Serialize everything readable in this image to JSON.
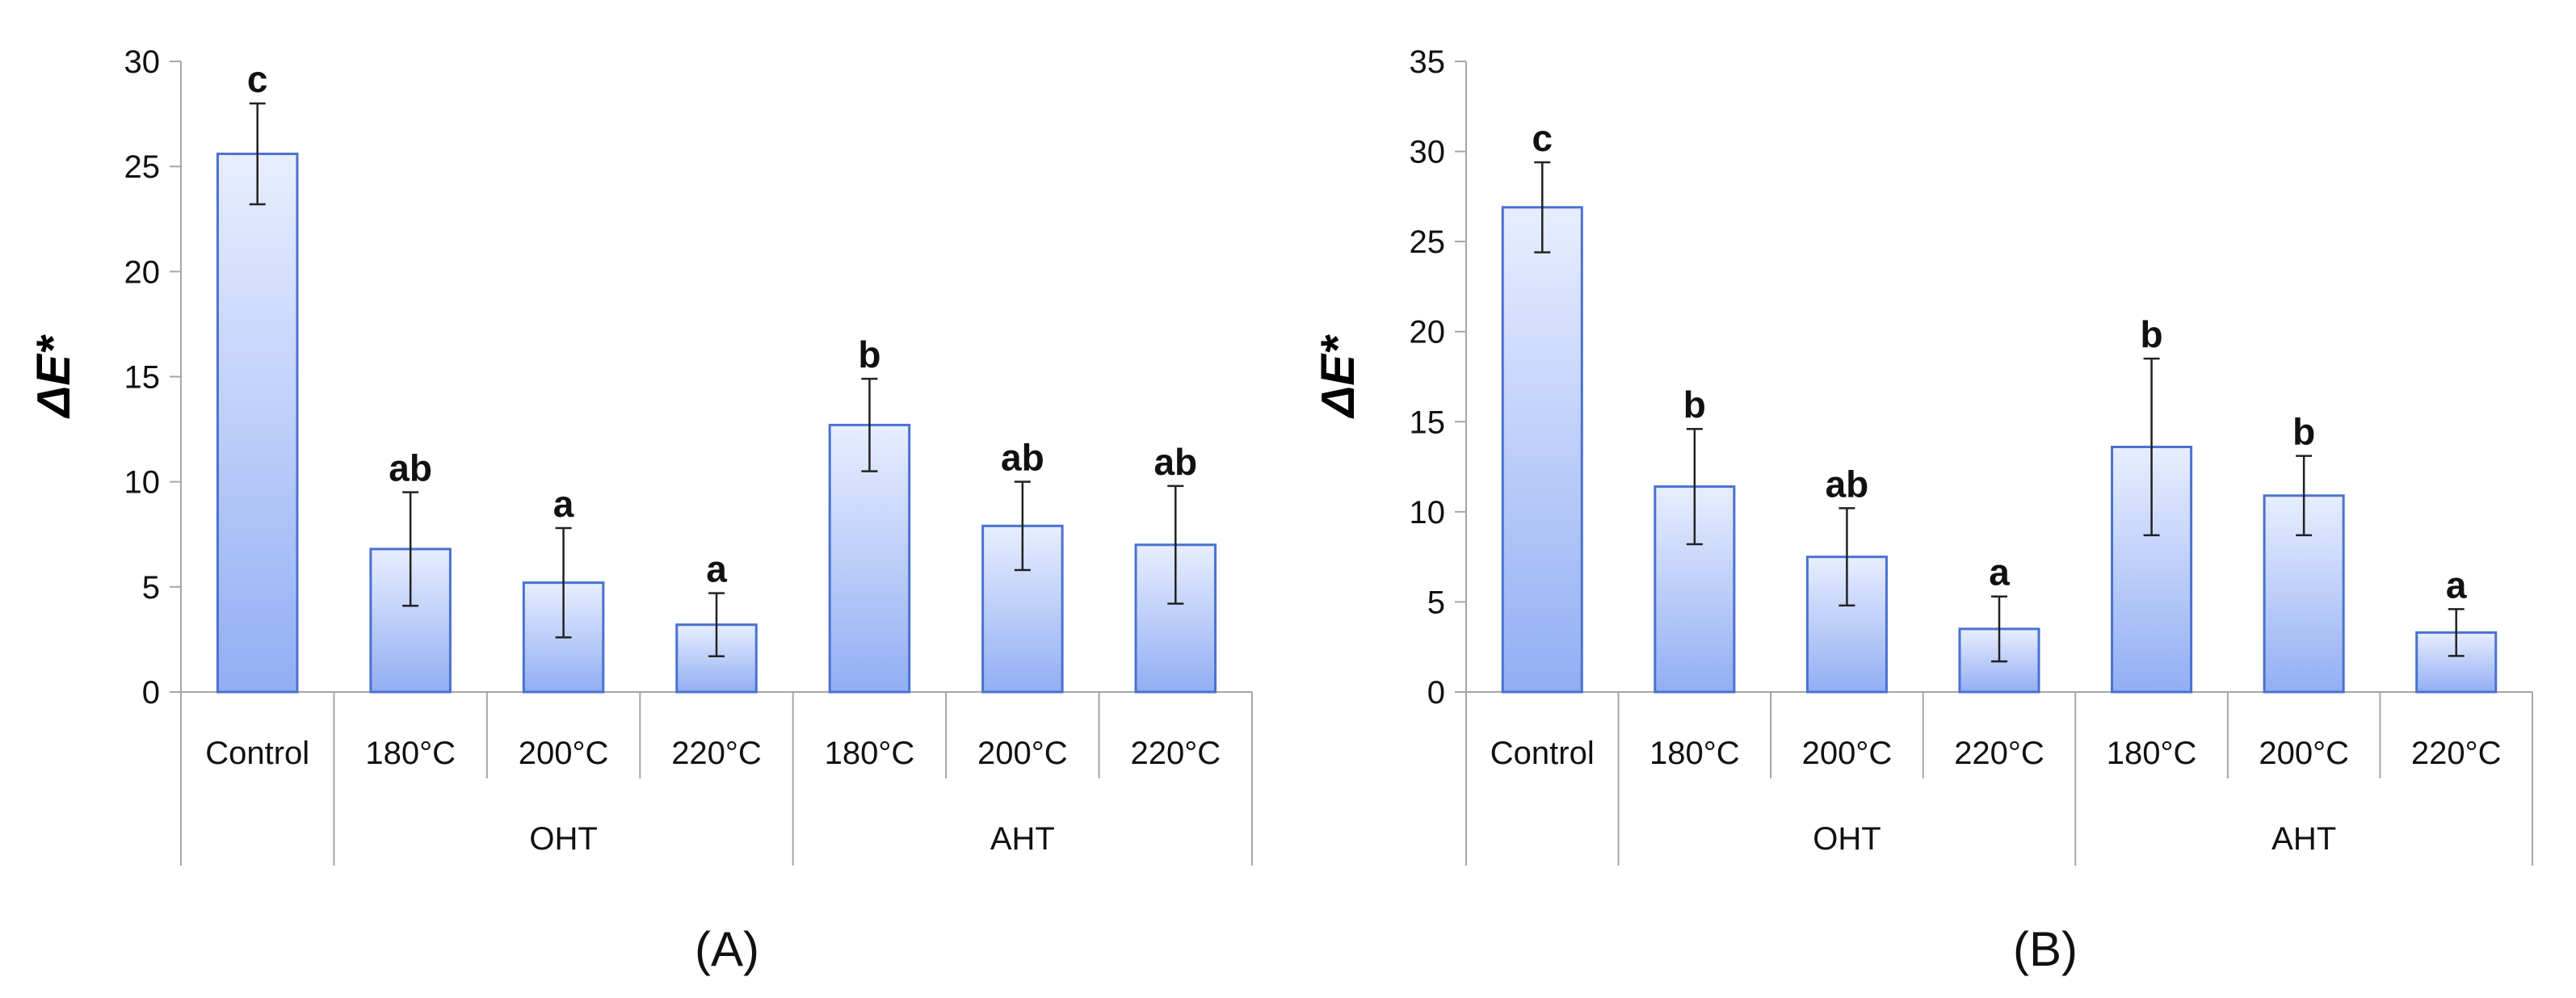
{
  "chart_data": [
    {
      "type": "bar",
      "panel_label": "(A)",
      "ylabel": "ΔE*",
      "ylim": [
        0,
        30
      ],
      "yticks": [
        0,
        5,
        10,
        15,
        20,
        25,
        30
      ],
      "categories": [
        "Control",
        "180°C",
        "200°C",
        "220°C",
        "180°C",
        "200°C",
        "220°C"
      ],
      "groups": [
        {
          "name": "OHT",
          "start": 1,
          "end": 3
        },
        {
          "name": "AHT",
          "start": 4,
          "end": 6
        }
      ],
      "values": [
        25.6,
        6.8,
        5.2,
        3.2,
        12.7,
        7.9,
        7.0
      ],
      "errors": [
        2.4,
        2.7,
        2.6,
        1.5,
        2.2,
        2.1,
        2.8
      ],
      "letters": [
        "c",
        "ab",
        "a",
        "a",
        "b",
        "ab",
        "ab"
      ],
      "colors": {
        "bar_top": "#e8eeff",
        "bar_bottom": "#92aef3",
        "bar_edge": "#4a72d0"
      }
    },
    {
      "type": "bar",
      "panel_label": "(B)",
      "ylabel": "ΔE*",
      "ylim": [
        0,
        35
      ],
      "yticks": [
        0,
        5,
        10,
        15,
        20,
        25,
        30,
        35
      ],
      "categories": [
        "Control",
        "180°C",
        "200°C",
        "220°C",
        "180°C",
        "200°C",
        "220°C"
      ],
      "groups": [
        {
          "name": "OHT",
          "start": 1,
          "end": 3
        },
        {
          "name": "AHT",
          "start": 4,
          "end": 6
        }
      ],
      "values": [
        26.9,
        11.4,
        7.5,
        3.5,
        13.6,
        10.9,
        3.3
      ],
      "errors": [
        2.5,
        3.2,
        2.7,
        1.8,
        4.9,
        2.2,
        1.3
      ],
      "letters": [
        "c",
        "b",
        "ab",
        "a",
        "b",
        "b",
        "a"
      ],
      "colors": {
        "bar_top": "#e8eeff",
        "bar_bottom": "#92aef3",
        "bar_edge": "#4a72d0"
      }
    }
  ]
}
